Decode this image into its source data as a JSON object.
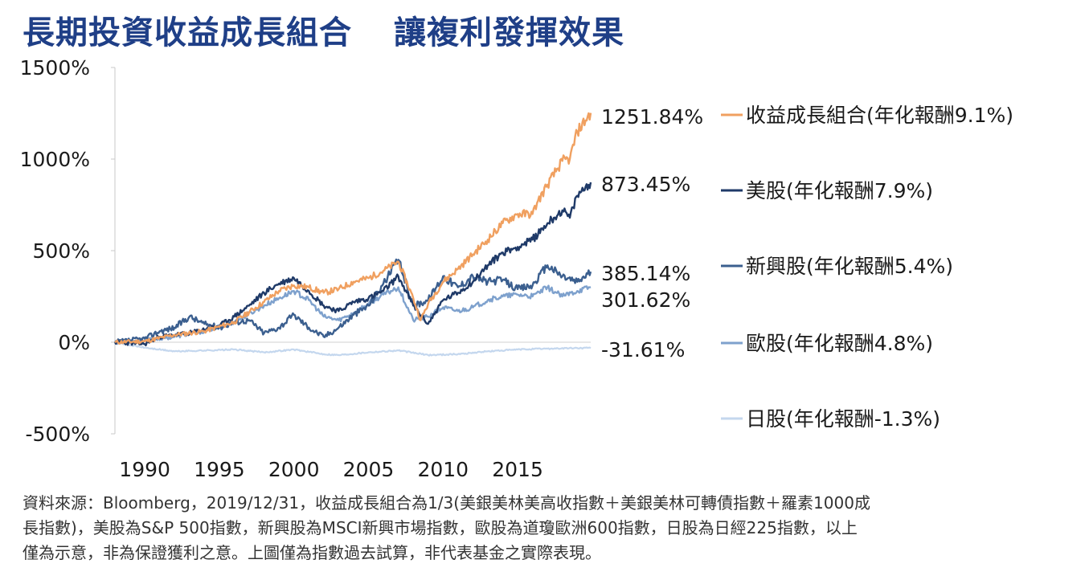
{
  "title": {
    "part1": "長期投資收益成長組合",
    "part2": "讓複利發揮效果"
  },
  "colors": {
    "title": "#1f3f87",
    "income_growth": "#f0a060",
    "us": "#1f3a68",
    "em": "#3b5f8f",
    "eu": "#7ea1cd",
    "jp": "#c4d7ee"
  },
  "chart_data": {
    "type": "line",
    "xlabel": "",
    "ylabel": "",
    "x_range": [
      1988,
      2019.9
    ],
    "ylim": [
      -500,
      1500
    ],
    "y_ticks": [
      -500,
      0,
      500,
      1000,
      1500
    ],
    "y_tick_labels": [
      "-500%",
      "0%",
      "500%",
      "1000%",
      "1500%"
    ],
    "x_ticks": [
      1990,
      1995,
      2000,
      2005,
      2010,
      2015
    ],
    "x_tick_labels": [
      "1990",
      "1995",
      "2000",
      "2005",
      "2010",
      "2015"
    ],
    "series": [
      {
        "key": "income_growth",
        "name": "收益成長組合(年化報酬9.1%)",
        "end_label": "1251.84%",
        "color": "#f0a060",
        "points": [
          [
            1988,
            0
          ],
          [
            1990,
            5
          ],
          [
            1992,
            40
          ],
          [
            1994,
            60
          ],
          [
            1996,
            110
          ],
          [
            1998,
            220
          ],
          [
            1999,
            280
          ],
          [
            2000,
            310
          ],
          [
            2001,
            300
          ],
          [
            2002,
            270
          ],
          [
            2003,
            290
          ],
          [
            2004,
            330
          ],
          [
            2005,
            350
          ],
          [
            2006,
            390
          ],
          [
            2007,
            440
          ],
          [
            2008,
            240
          ],
          [
            2008.5,
            120
          ],
          [
            2009,
            210
          ],
          [
            2010,
            330
          ],
          [
            2011,
            400
          ],
          [
            2012,
            480
          ],
          [
            2013,
            560
          ],
          [
            2014,
            650
          ],
          [
            2015,
            700
          ],
          [
            2016,
            700
          ],
          [
            2016.3,
            760
          ],
          [
            2017,
            860
          ],
          [
            2018,
            990
          ],
          [
            2018.5,
            1000
          ],
          [
            2019,
            1150
          ],
          [
            2019.9,
            1251.84
          ]
        ]
      },
      {
        "key": "us",
        "name": "美股(年化報酬7.9%)",
        "end_label": "873.45%",
        "color": "#1f3a68",
        "points": [
          [
            1988,
            0
          ],
          [
            1990,
            -10
          ],
          [
            1991,
            30
          ],
          [
            1993,
            50
          ],
          [
            1995,
            90
          ],
          [
            1996,
            140
          ],
          [
            1997,
            200
          ],
          [
            1998,
            270
          ],
          [
            1999,
            320
          ],
          [
            2000,
            350
          ],
          [
            2001,
            280
          ],
          [
            2002,
            200
          ],
          [
            2003,
            170
          ],
          [
            2004,
            220
          ],
          [
            2005,
            240
          ],
          [
            2006,
            280
          ],
          [
            2007,
            360
          ],
          [
            2008,
            200
          ],
          [
            2009,
            100
          ],
          [
            2010,
            230
          ],
          [
            2011,
            270
          ],
          [
            2012,
            330
          ],
          [
            2013,
            420
          ],
          [
            2014,
            490
          ],
          [
            2015,
            520
          ],
          [
            2016,
            560
          ],
          [
            2017,
            650
          ],
          [
            2018,
            720
          ],
          [
            2018.5,
            680
          ],
          [
            2019,
            800
          ],
          [
            2019.9,
            873.45
          ]
        ]
      },
      {
        "key": "em",
        "name": "新興股(年化報酬5.4%)",
        "end_label": "385.14%",
        "color": "#3b5f8f",
        "points": [
          [
            1988,
            0
          ],
          [
            1990,
            20
          ],
          [
            1991,
            60
          ],
          [
            1992,
            80
          ],
          [
            1993,
            140
          ],
          [
            1994,
            100
          ],
          [
            1995,
            80
          ],
          [
            1996,
            110
          ],
          [
            1997,
            120
          ],
          [
            1998,
            50
          ],
          [
            1999,
            80
          ],
          [
            2000,
            150
          ],
          [
            2001,
            80
          ],
          [
            2002,
            30
          ],
          [
            2003,
            80
          ],
          [
            2004,
            150
          ],
          [
            2005,
            200
          ],
          [
            2006,
            320
          ],
          [
            2007,
            450
          ],
          [
            2008,
            200
          ],
          [
            2009,
            230
          ],
          [
            2010,
            360
          ],
          [
            2011,
            300
          ],
          [
            2012,
            360
          ],
          [
            2013,
            330
          ],
          [
            2014,
            340
          ],
          [
            2015,
            290
          ],
          [
            2016,
            310
          ],
          [
            2017,
            420
          ],
          [
            2018,
            360
          ],
          [
            2019,
            330
          ],
          [
            2019.9,
            385.14
          ]
        ]
      },
      {
        "key": "eu",
        "name": "歐股(年化報酬4.8%)",
        "end_label": "301.62%",
        "color": "#7ea1cd",
        "points": [
          [
            1988,
            0
          ],
          [
            1990,
            10
          ],
          [
            1992,
            30
          ],
          [
            1994,
            60
          ],
          [
            1996,
            110
          ],
          [
            1998,
            200
          ],
          [
            1999,
            240
          ],
          [
            2000,
            280
          ],
          [
            2001,
            230
          ],
          [
            2002,
            140
          ],
          [
            2003,
            120
          ],
          [
            2004,
            160
          ],
          [
            2005,
            210
          ],
          [
            2006,
            260
          ],
          [
            2007,
            300
          ],
          [
            2008,
            120
          ],
          [
            2009,
            140
          ],
          [
            2010,
            190
          ],
          [
            2011,
            170
          ],
          [
            2012,
            190
          ],
          [
            2013,
            230
          ],
          [
            2014,
            250
          ],
          [
            2015,
            260
          ],
          [
            2016,
            250
          ],
          [
            2017,
            300
          ],
          [
            2018,
            250
          ],
          [
            2019,
            280
          ],
          [
            2019.9,
            301.62
          ]
        ]
      },
      {
        "key": "jp",
        "name": "日股(年化報酬-1.3%)",
        "end_label": "-31.61%",
        "color": "#c4d7ee",
        "points": [
          [
            1988,
            0
          ],
          [
            1990,
            -30
          ],
          [
            1992,
            -50
          ],
          [
            1994,
            -45
          ],
          [
            1996,
            -40
          ],
          [
            1998,
            -55
          ],
          [
            2000,
            -40
          ],
          [
            2002,
            -65
          ],
          [
            2003,
            -70
          ],
          [
            2005,
            -55
          ],
          [
            2007,
            -45
          ],
          [
            2009,
            -70
          ],
          [
            2011,
            -65
          ],
          [
            2013,
            -50
          ],
          [
            2015,
            -40
          ],
          [
            2017,
            -35
          ],
          [
            2019,
            -32
          ],
          [
            2019.9,
            -31.61
          ]
        ]
      }
    ]
  },
  "legend": {
    "placement": "right",
    "items": [
      {
        "key": "income_growth",
        "label": "收益成長組合(年化報酬9.1%)"
      },
      {
        "key": "us",
        "label": "美股(年化報酬7.9%)"
      },
      {
        "key": "em",
        "label": "新興股(年化報酬5.4%)"
      },
      {
        "key": "eu",
        "label": "歐股(年化報酬4.8%)"
      },
      {
        "key": "jp",
        "label": "日股(年化報酬-1.3%)"
      }
    ]
  },
  "end_labels": [
    "1251.84%",
    "873.45%",
    "385.14%",
    "301.62%",
    "-31.61%"
  ],
  "footnote": {
    "line1": "資料來源：Bloomberg，2019/12/31，收益成長組合為1/3(美銀美林美高收指數＋美銀美林可轉債指數＋羅素1000成",
    "line2": "長指數)，美股為S&P 500指數，新興股為MSCI新興市場指數，歐股為道瓊歐洲600指數，日股為日經225指數，以上",
    "line3": "僅為示意，非為保證獲利之意。上圖僅為指數過去試算，非代表基金之實際表現。"
  }
}
